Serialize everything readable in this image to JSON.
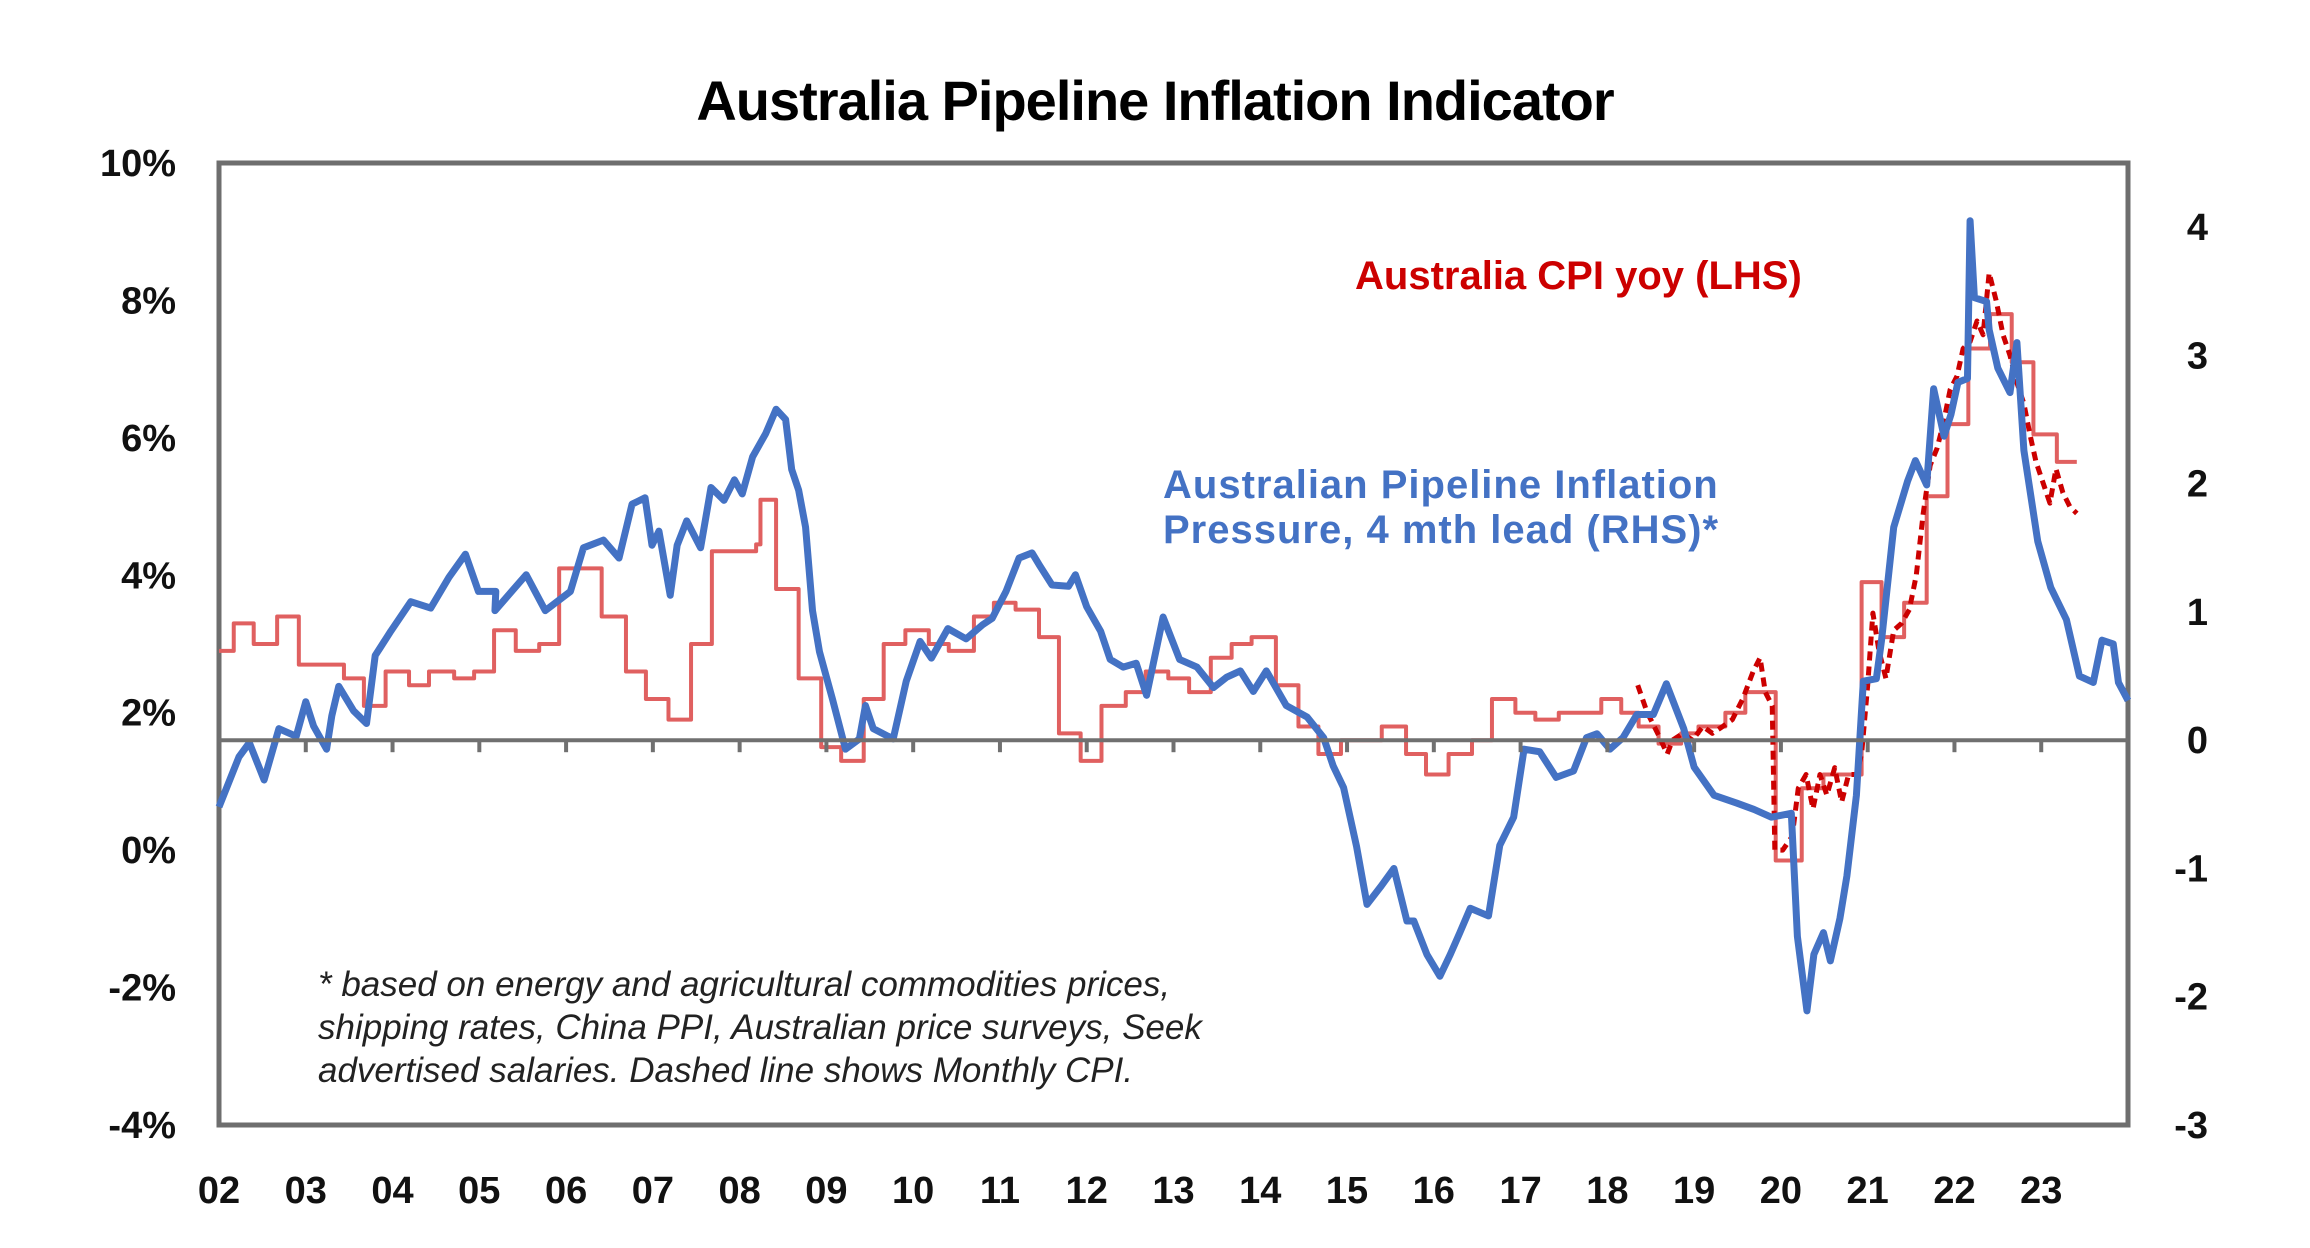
{
  "chart_data": {
    "type": "line",
    "title": "Australia Pipeline Inflation Indicator",
    "xlim": [
      2002,
      2024
    ],
    "x_tick_labels": [
      "02",
      "03",
      "04",
      "05",
      "06",
      "07",
      "08",
      "09",
      "10",
      "11",
      "12",
      "13",
      "14",
      "15",
      "16",
      "17",
      "18",
      "19",
      "20",
      "21",
      "22",
      "23"
    ],
    "x_tick_years": [
      2002,
      2003,
      2004,
      2005,
      2006,
      2007,
      2008,
      2009,
      2010,
      2011,
      2012,
      2013,
      2014,
      2015,
      2016,
      2017,
      2018,
      2019,
      2020,
      2021,
      2022,
      2023
    ],
    "y_left": {
      "range": [
        -4,
        10
      ],
      "ticks": [
        10,
        8,
        6,
        4,
        2,
        0,
        -2,
        -4
      ],
      "tick_labels": [
        "10%",
        "8%",
        "6%",
        "4%",
        "2%",
        "0%",
        "-2%",
        "-4%"
      ]
    },
    "y_right": {
      "range": [
        -3,
        4.5
      ],
      "ticks": [
        4,
        3,
        2,
        1,
        0,
        -1,
        -2,
        -3
      ],
      "tick_labels": [
        "4",
        "3",
        "2",
        "1",
        "0",
        "-1",
        "-2",
        "-3"
      ]
    },
    "zero_line_axis": "right",
    "grid": false,
    "annotations": {
      "cpi_label": "Australia CPI yoy (LHS)",
      "pipeline_label_line1": "Australian Pipeline Inflation",
      "pipeline_label_line2": "Pressure, 4 mth lead (RHS)*",
      "footnote_line1": "* based on energy and agricultural commodities prices,",
      "footnote_line2": "shipping rates, China PPI, Australian price surveys, Seek",
      "footnote_line3": "advertised salaries. Dashed line shows Monthly CPI."
    },
    "series": [
      {
        "name": "Australia CPI yoy (LHS)",
        "axis": "left",
        "style": "step",
        "color": "#e06060",
        "x": [
          2002.0,
          2002.17,
          2002.4,
          2002.67,
          2002.92,
          2003.44,
          2003.67,
          2003.92,
          2004.19,
          2004.42,
          2004.71,
          2004.94,
          2005.17,
          2005.42,
          2005.69,
          2005.92,
          2006.41,
          2006.69,
          2006.92,
          2007.18,
          2007.44,
          2007.68,
          2008.19,
          2008.24,
          2008.42,
          2008.68,
          2008.94,
          2009.17,
          2009.43,
          2009.66,
          2009.91,
          2010.18,
          2010.41,
          2010.7,
          2010.93,
          2011.18,
          2011.45,
          2011.68,
          2011.93,
          2012.17,
          2012.45,
          2012.68,
          2012.94,
          2013.18,
          2013.43,
          2013.67,
          2013.9,
          2014.18,
          2014.44,
          2014.67,
          2014.93,
          2015.4,
          2015.68,
          2015.91,
          2016.17,
          2016.44,
          2016.67,
          2016.94,
          2017.17,
          2017.44,
          2017.93,
          2018.16,
          2018.36,
          2018.59,
          2018.85,
          2019.05,
          2019.36,
          2019.59,
          2019.94,
          2020.24,
          2020.49,
          2020.93,
          2021.16,
          2021.42,
          2021.68,
          2021.92,
          2022.16,
          2022.41,
          2022.66,
          2022.91,
          2023.18,
          2023.41
        ],
        "values": [
          2.9,
          3.3,
          3.0,
          3.4,
          2.7,
          2.5,
          2.1,
          2.6,
          2.4,
          2.6,
          2.5,
          2.6,
          3.2,
          2.9,
          3.0,
          4.1,
          3.4,
          2.6,
          2.2,
          1.9,
          3.0,
          4.35,
          4.45,
          5.1,
          3.8,
          2.5,
          1.5,
          1.3,
          2.2,
          3.0,
          3.2,
          3.0,
          2.9,
          3.4,
          3.6,
          3.5,
          3.1,
          1.7,
          1.3,
          2.1,
          2.3,
          2.6,
          2.5,
          2.3,
          2.8,
          3.0,
          3.1,
          2.4,
          1.8,
          1.4,
          1.6,
          1.8,
          1.4,
          1.1,
          1.4,
          1.6,
          2.2,
          2.0,
          1.9,
          2.0,
          2.2,
          2.0,
          1.8,
          1.55,
          1.7,
          1.8,
          2.0,
          2.3,
          -0.15,
          0.9,
          1.1,
          3.9,
          3.1,
          3.6,
          5.15,
          6.2,
          7.3,
          7.8,
          7.1,
          6.05,
          5.65,
          5.65
        ]
      },
      {
        "name": "Monthly CPI (LHS, dashed)",
        "axis": "left",
        "style": "dashed",
        "color": "#cc0000",
        "x": [
          2018.35,
          2018.46,
          2018.58,
          2018.69,
          2018.75,
          2018.87,
          2018.98,
          2019.1,
          2019.21,
          2019.33,
          2019.44,
          2019.56,
          2019.68,
          2019.76,
          2019.82,
          2019.9,
          2019.93,
          2020.02,
          2020.13,
          2020.2,
          2020.29,
          2020.37,
          2020.45,
          2020.53,
          2020.62,
          2020.7,
          2020.78,
          2020.87,
          2020.93,
          2021.0,
          2021.06,
          2021.13,
          2021.21,
          2021.3,
          2021.39,
          2021.48,
          2021.56,
          2021.64,
          2021.72,
          2021.8,
          2021.87,
          2021.95,
          2022.03,
          2022.1,
          2022.18,
          2022.26,
          2022.33,
          2022.4,
          2022.48,
          2022.56,
          2022.64,
          2022.72,
          2022.8,
          2022.87,
          2022.94,
          2023.02,
          2023.1,
          2023.17,
          2023.25,
          2023.33,
          2023.41
        ],
        "values": [
          2.4,
          2.0,
          1.7,
          1.4,
          1.6,
          1.7,
          1.6,
          1.8,
          1.7,
          1.8,
          1.9,
          2.2,
          2.6,
          2.8,
          2.3,
          2.1,
          0.0,
          0.0,
          0.2,
          0.9,
          1.1,
          0.6,
          1.1,
          0.8,
          1.2,
          0.7,
          1.1,
          1.1,
          1.4,
          2.4,
          3.45,
          2.9,
          2.5,
          3.2,
          3.3,
          3.5,
          4.0,
          4.9,
          5.6,
          5.85,
          6.2,
          6.7,
          6.9,
          7.3,
          7.4,
          7.7,
          7.5,
          8.4,
          8.0,
          7.5,
          7.2,
          6.8,
          6.5,
          6.05,
          5.65,
          5.35,
          5.05,
          5.55,
          5.2,
          5.0,
          4.9
        ]
      },
      {
        "name": "Australian Pipeline Inflation Pressure, 4 mth lead (RHS)",
        "axis": "right",
        "style": "solid",
        "color": "#4472c4",
        "x": [
          2002.0,
          2002.23,
          2002.35,
          2002.52,
          2002.69,
          2002.89,
          2003.0,
          2003.09,
          2003.24,
          2003.3,
          2003.38,
          2003.55,
          2003.7,
          2003.8,
          2003.98,
          2004.21,
          2004.44,
          2004.65,
          2004.84,
          2004.99,
          2005.19,
          2005.18,
          2005.54,
          2005.76,
          2006.05,
          2006.2,
          2006.43,
          2006.61,
          2006.76,
          2006.91,
          2006.99,
          2007.07,
          2007.2,
          2007.28,
          2007.39,
          2007.55,
          2007.67,
          2007.82,
          2007.94,
          2008.03,
          2008.15,
          2008.3,
          2008.42,
          2008.53,
          2008.6,
          2008.68,
          2008.76,
          2008.84,
          2008.92,
          2009.07,
          2009.22,
          2009.38,
          2009.45,
          2009.54,
          2009.77,
          2009.92,
          2010.08,
          2010.21,
          2010.4,
          2010.61,
          2010.8,
          2010.91,
          2011.07,
          2011.22,
          2011.37,
          2011.45,
          2011.6,
          2011.79,
          2011.87,
          2012.0,
          2012.16,
          2012.27,
          2012.42,
          2012.57,
          2012.69,
          2012.88,
          2013.07,
          2013.27,
          2013.46,
          2013.61,
          2013.77,
          2013.92,
          2014.07,
          2014.3,
          2014.54,
          2014.73,
          2014.84,
          2014.96,
          2015.11,
          2015.23,
          2015.39,
          2015.54,
          2015.69,
          2015.77,
          2015.92,
          2016.07,
          2016.19,
          2016.3,
          2016.42,
          2016.63,
          2016.76,
          2016.92,
          2017.04,
          2017.22,
          2017.41,
          2017.61,
          2017.76,
          2017.88,
          2018.03,
          2018.18,
          2018.34,
          2018.53,
          2018.68,
          2018.88,
          2019.0,
          2019.23,
          2019.49,
          2019.69,
          2019.89,
          2020.12,
          2020.19,
          2020.3,
          2020.38,
          2020.49,
          2020.57,
          2020.68,
          2020.76,
          2020.87,
          2020.95,
          2021.1,
          2021.16,
          2021.3,
          2021.46,
          2021.55,
          2021.68,
          2021.76,
          2021.88,
          2021.96,
          2022.04,
          2022.15,
          2022.18,
          2022.23,
          2022.37,
          2022.4,
          2022.5,
          2022.64,
          2022.72,
          2022.8,
          2022.96,
          2023.11,
          2023.29,
          2023.44,
          2023.6,
          2023.7,
          2023.83,
          2023.89,
          2024.0
        ],
        "values": [
          -0.52,
          -0.13,
          -0.02,
          -0.31,
          0.09,
          0.03,
          0.3,
          0.11,
          -0.07,
          0.19,
          0.42,
          0.23,
          0.13,
          0.66,
          0.85,
          1.08,
          1.03,
          1.27,
          1.45,
          1.16,
          1.16,
          1.01,
          1.29,
          1.01,
          1.16,
          1.5,
          1.56,
          1.42,
          1.84,
          1.89,
          1.52,
          1.63,
          1.13,
          1.52,
          1.71,
          1.5,
          1.97,
          1.87,
          2.03,
          1.92,
          2.21,
          2.39,
          2.58,
          2.5,
          2.11,
          1.95,
          1.66,
          1.01,
          0.69,
          0.32,
          -0.07,
          0.01,
          0.27,
          0.09,
          0.01,
          0.46,
          0.77,
          0.64,
          0.87,
          0.79,
          0.9,
          0.95,
          1.16,
          1.42,
          1.46,
          1.37,
          1.21,
          1.2,
          1.29,
          1.04,
          0.85,
          0.63,
          0.57,
          0.6,
          0.35,
          0.96,
          0.63,
          0.57,
          0.41,
          0.49,
          0.54,
          0.38,
          0.54,
          0.27,
          0.18,
          0.02,
          -0.2,
          -0.37,
          -0.83,
          -1.28,
          -1.14,
          -1.0,
          -1.41,
          -1.41,
          -1.67,
          -1.84,
          -1.67,
          -1.5,
          -1.31,
          -1.37,
          -0.82,
          -0.6,
          -0.07,
          -0.09,
          -0.29,
          -0.24,
          0.02,
          0.05,
          -0.07,
          0.02,
          0.2,
          0.2,
          0.44,
          0.09,
          -0.21,
          -0.43,
          -0.49,
          -0.54,
          -0.6,
          -0.57,
          -1.53,
          -2.11,
          -1.67,
          -1.5,
          -1.72,
          -1.39,
          -1.06,
          -0.43,
          0.46,
          0.48,
          0.78,
          1.66,
          2.02,
          2.18,
          1.99,
          2.74,
          2.37,
          2.54,
          2.79,
          2.82,
          4.05,
          3.45,
          3.42,
          3.2,
          2.9,
          2.71,
          3.1,
          2.26,
          1.55,
          1.19,
          0.94,
          0.5,
          0.45,
          0.78,
          0.75,
          0.45,
          0.31
        ]
      }
    ]
  }
}
